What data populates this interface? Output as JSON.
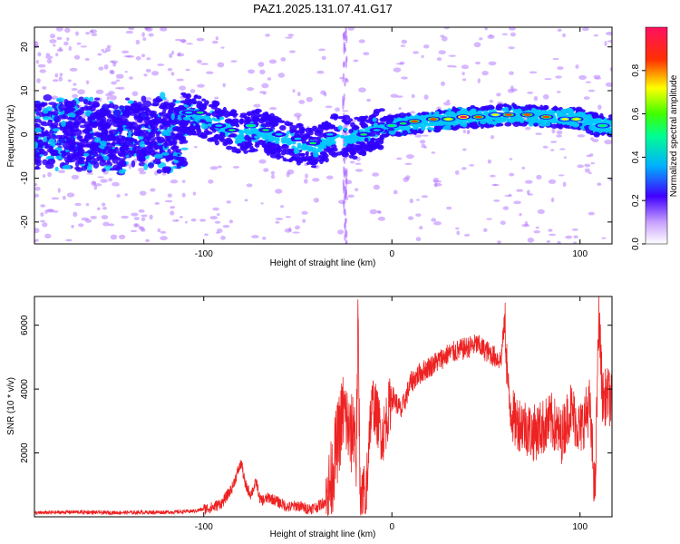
{
  "title": "PAZ1.2025.131.07.41.G17",
  "chart_data": [
    {
      "type": "heatmap",
      "title": "PAZ1.2025.131.07.41.G17",
      "xlabel": "Height of straight line (km)",
      "ylabel": "Frequency (Hz)",
      "xlim": [
        -190,
        117
      ],
      "ylim": [
        -25,
        24.5
      ],
      "x_ticks": [
        {
          "value": -100,
          "label": "-100"
        },
        {
          "value": 0,
          "label": "0"
        },
        {
          "value": 100,
          "label": "100"
        }
      ],
      "y_ticks": [
        {
          "value": 20,
          "label": "20"
        },
        {
          "value": 10,
          "label": "10"
        },
        {
          "value": 0,
          "label": "0"
        },
        {
          "value": -10,
          "label": "-10"
        },
        {
          "value": -20,
          "label": "-20"
        }
      ],
      "colorbar": {
        "label": "Normalized spectral amplitude",
        "range": [
          0,
          1
        ],
        "ticks": [
          {
            "value": 0.0,
            "label": "0.0"
          },
          {
            "value": 0.2,
            "label": "0.2"
          },
          {
            "value": 0.4,
            "label": "0.4"
          },
          {
            "value": 0.6,
            "label": "0.6"
          },
          {
            "value": 0.8,
            "label": "0.8"
          }
        ],
        "colors": [
          "#ffffff",
          "#b070ff",
          "#3000ff",
          "#00c8ff",
          "#00ff60",
          "#ffff00",
          "#ff4000",
          "#ff1060"
        ]
      },
      "ridge": {
        "x": [
          -110,
          -100,
          -90,
          -80,
          -70,
          -60,
          -50,
          -40,
          -30,
          -20,
          -15,
          -10,
          0,
          10,
          20,
          30,
          40,
          50,
          60,
          70,
          80,
          90,
          100,
          110,
          117
        ],
        "frequency": [
          5,
          4,
          2,
          0,
          1,
          -1,
          -2,
          -3,
          0,
          -1,
          0,
          1,
          2,
          2.5,
          3,
          3.5,
          4,
          4,
          4.5,
          4.5,
          4,
          4,
          3.5,
          2,
          2
        ]
      }
    },
    {
      "type": "line",
      "xlabel": "Height of straight line (km)",
      "ylabel": "SNR (10 * v/v)",
      "xlim": [
        -190,
        117
      ],
      "ylim": [
        0,
        6900
      ],
      "x_ticks": [
        {
          "value": -100,
          "label": "-100"
        },
        {
          "value": 0,
          "label": "0"
        },
        {
          "value": 100,
          "label": "100"
        }
      ],
      "y_ticks": [
        {
          "value": 2000,
          "label": "2000"
        },
        {
          "value": 4000,
          "label": "4000"
        },
        {
          "value": 6000,
          "label": "6000"
        }
      ],
      "line_color": "#ee2222",
      "series": [
        {
          "x": [
            -190,
            -170,
            -150,
            -130,
            -115,
            -105,
            -95,
            -90,
            -85,
            -82,
            -80,
            -78,
            -75,
            -72,
            -70,
            -65,
            -60,
            -55,
            -50,
            -45,
            -40,
            -35,
            -32,
            -30,
            -28,
            -26,
            -24,
            -22,
            -20,
            -19,
            -18,
            -17,
            -16,
            -14,
            -12,
            -10,
            -5,
            0,
            5,
            10,
            15,
            20,
            25,
            30,
            35,
            40,
            45,
            50,
            55,
            58,
            60,
            62,
            65,
            70,
            75,
            80,
            85,
            90,
            95,
            100,
            105,
            108,
            110,
            112,
            115,
            117
          ],
          "values": [
            120,
            150,
            130,
            140,
            150,
            180,
            300,
            450,
            900,
            1400,
            1700,
            1000,
            700,
            1100,
            500,
            600,
            450,
            300,
            350,
            250,
            300,
            500,
            1200,
            2000,
            2600,
            3300,
            3000,
            2400,
            3000,
            1700,
            5900,
            1500,
            500,
            300,
            2800,
            3600,
            2500,
            3800,
            3300,
            4200,
            4500,
            4700,
            4900,
            5100,
            5200,
            5300,
            5400,
            5200,
            5000,
            4900,
            6200,
            3700,
            3000,
            2900,
            2600,
            2800,
            3000,
            2500,
            3400,
            2700,
            3500,
            700,
            6300,
            3700,
            3800,
            3600
          ]
        }
      ]
    }
  ]
}
